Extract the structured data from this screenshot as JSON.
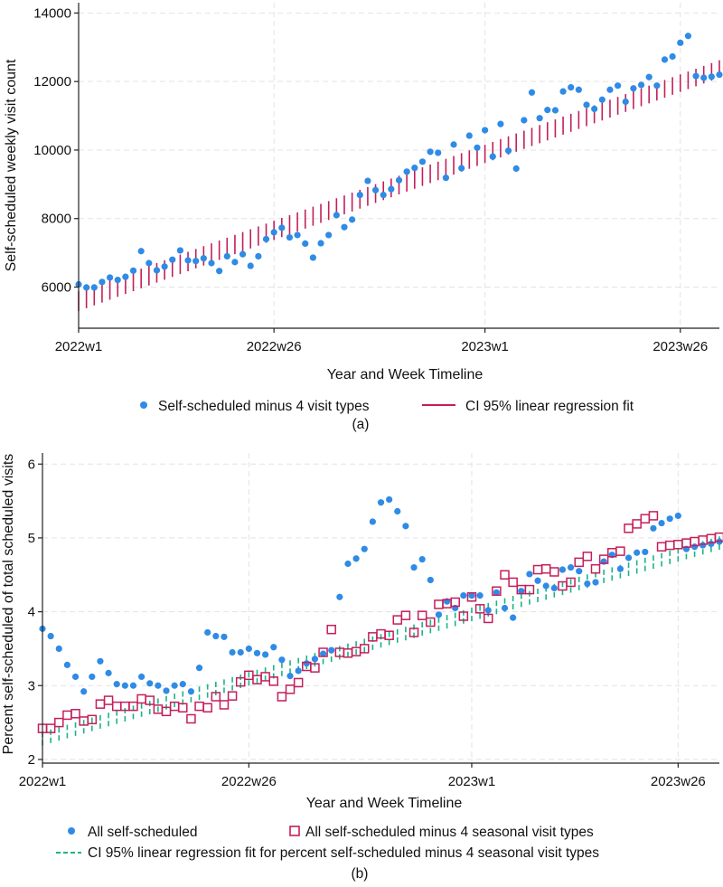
{
  "colors": {
    "dot": "#2f8be6",
    "ci_a": "#c41e5a",
    "square": "#c41e5a",
    "ci_b": "#18b487"
  },
  "charts": [
    {
      "chart_data": {
        "type": "scatter",
        "caption": "(a)",
        "xlabel": "Year and Week Timeline",
        "ylabel": "Self-scheduled weekly visit count",
        "xlim": [
          1,
          83
        ],
        "ylim": [
          4800,
          14300
        ],
        "x_ticks": [
          {
            "value": 1,
            "label": "2022w1"
          },
          {
            "value": 26,
            "label": "2022w26"
          },
          {
            "value": 53,
            "label": "2023w1"
          },
          {
            "value": 78,
            "label": "2023w26"
          }
        ],
        "y_ticks": [
          {
            "value": 6000,
            "label": "6000"
          },
          {
            "value": 8000,
            "label": "8000"
          },
          {
            "value": 10000,
            "label": "10000"
          },
          {
            "value": 12000,
            "label": "12000"
          },
          {
            "value": 14000,
            "label": "14000"
          }
        ],
        "series": [
          {
            "name": "Self-scheduled minus 4 visit types",
            "kind": "dots",
            "x": [
              1,
              2,
              3,
              4,
              5,
              6,
              7,
              8,
              9,
              10,
              11,
              12,
              13,
              14,
              15,
              16,
              17,
              18,
              19,
              20,
              21,
              22,
              23,
              24,
              25,
              26,
              27,
              28,
              29,
              30,
              31,
              32,
              33,
              34,
              35,
              36,
              37,
              38,
              39,
              40,
              41,
              42,
              43,
              44,
              45,
              46,
              47,
              48,
              49,
              50,
              51,
              52,
              53,
              54,
              55,
              56,
              57,
              58,
              59,
              60,
              61,
              62,
              63,
              64,
              65,
              66,
              67,
              68,
              69,
              70,
              71,
              72,
              73,
              74,
              75,
              76,
              77,
              78,
              79,
              80,
              81,
              82,
              83
            ],
            "values": [
              6080,
              5990,
              5990,
              6150,
              6280,
              6210,
              6300,
              6480,
              7050,
              6700,
              6490,
              6600,
              6800,
              7070,
              6780,
              6760,
              6840,
              6700,
              6470,
              6900,
              6730,
              6960,
              6620,
              6900,
              7400,
              7600,
              7730,
              7450,
              7520,
              7270,
              6860,
              7280,
              7520,
              8100,
              7750,
              7970,
              8690,
              9100,
              8830,
              8690,
              8860,
              9120,
              9370,
              9480,
              9660,
              9950,
              9920,
              9190,
              10160,
              9470,
              10420,
              10070,
              10580,
              9810,
              10760,
              9980,
              9460,
              10870,
              11680,
              10930,
              11170,
              11160,
              11710,
              11830,
              11760,
              11320,
              11200,
              11470,
              11760,
              11880,
              11410,
              11800,
              11900,
              12130,
              11880,
              12640,
              12730,
              13130,
              13330,
              12160,
              12110,
              12140,
              12200
            ]
          },
          {
            "name": "CI 95% linear regression fit",
            "kind": "ci",
            "ci_start": [
              5300,
              5880
            ],
            "ci_end": [
              12110,
              12620
            ]
          }
        ],
        "legend": [
          {
            "label": "Self-scheduled minus 4 visit types",
            "marker": "dot"
          },
          {
            "label": "CI 95% linear regression fit",
            "marker": "line"
          }
        ]
      }
    },
    {
      "chart_data": {
        "type": "scatter",
        "caption": "(b)",
        "xlabel": "Year and Week Timeline",
        "ylabel": "Percent self-scheduled of total scheduled visits",
        "xlim": [
          1,
          83
        ],
        "ylim": [
          1.95,
          6.15
        ],
        "x_ticks": [
          {
            "value": 1,
            "label": "2022w1"
          },
          {
            "value": 26,
            "label": "2022w26"
          },
          {
            "value": 53,
            "label": "2023w1"
          },
          {
            "value": 78,
            "label": "2023w26"
          }
        ],
        "y_ticks": [
          {
            "value": 2,
            "label": "2"
          },
          {
            "value": 3,
            "label": "3"
          },
          {
            "value": 4,
            "label": "4"
          },
          {
            "value": 5,
            "label": "5"
          },
          {
            "value": 6,
            "label": "6"
          }
        ],
        "series": [
          {
            "name": "All self-scheduled",
            "kind": "dots",
            "x": [
              1,
              2,
              3,
              4,
              5,
              6,
              7,
              8,
              9,
              10,
              11,
              12,
              13,
              14,
              15,
              16,
              17,
              18,
              19,
              20,
              21,
              22,
              23,
              24,
              25,
              26,
              27,
              28,
              29,
              30,
              31,
              32,
              33,
              34,
              35,
              36,
              37,
              38,
              39,
              40,
              41,
              42,
              43,
              44,
              45,
              46,
              47,
              48,
              49,
              50,
              51,
              52,
              53,
              54,
              55,
              56,
              57,
              58,
              59,
              60,
              61,
              62,
              63,
              64,
              65,
              66,
              67,
              68,
              69,
              70,
              71,
              72,
              73,
              74,
              75,
              76,
              77,
              78,
              79,
              80,
              81,
              82,
              83
            ],
            "values": [
              3.77,
              3.67,
              3.5,
              3.28,
              3.12,
              2.92,
              3.12,
              3.33,
              3.17,
              3.02,
              3.0,
              3.0,
              3.12,
              3.03,
              3.0,
              2.93,
              3.0,
              3.02,
              2.92,
              3.24,
              3.72,
              3.67,
              3.66,
              3.45,
              3.45,
              3.5,
              3.44,
              3.42,
              3.52,
              3.35,
              3.13,
              3.2,
              3.3,
              3.36,
              3.43,
              3.48,
              4.2,
              4.65,
              4.72,
              4.85,
              5.22,
              5.48,
              5.52,
              5.36,
              5.16,
              4.6,
              4.71,
              4.43,
              3.96,
              4.14,
              4.05,
              4.22,
              4.22,
              4.22,
              4.02,
              4.26,
              4.05,
              3.92,
              4.28,
              4.51,
              4.42,
              4.35,
              4.32,
              4.57,
              4.6,
              4.55,
              4.38,
              4.4,
              4.68,
              4.77,
              4.58,
              4.73,
              4.8,
              4.81,
              5.13,
              5.2,
              5.26,
              5.3,
              4.85,
              4.88,
              4.9,
              4.92,
              4.95
            ]
          },
          {
            "name": "All self-scheduled minus 4 seasonal visit types",
            "kind": "squares",
            "x": [
              1,
              2,
              3,
              4,
              5,
              6,
              7,
              8,
              9,
              10,
              11,
              12,
              13,
              14,
              15,
              16,
              17,
              18,
              19,
              20,
              21,
              22,
              23,
              24,
              25,
              26,
              27,
              28,
              29,
              30,
              31,
              32,
              33,
              34,
              35,
              36,
              37,
              38,
              39,
              40,
              41,
              42,
              43,
              44,
              45,
              46,
              47,
              48,
              49,
              50,
              51,
              52,
              53,
              54,
              55,
              56,
              57,
              58,
              59,
              60,
              61,
              62,
              63,
              64,
              65,
              66,
              67,
              68,
              69,
              70,
              71,
              72,
              73,
              74,
              75,
              76,
              77,
              78,
              79,
              80,
              81,
              82,
              83
            ],
            "values": [
              2.42,
              2.42,
              2.5,
              2.6,
              2.62,
              2.52,
              2.54,
              2.75,
              2.8,
              2.72,
              2.72,
              2.72,
              2.82,
              2.8,
              2.68,
              2.65,
              2.72,
              2.7,
              2.55,
              2.72,
              2.7,
              2.85,
              2.74,
              2.86,
              3.05,
              3.14,
              3.08,
              3.12,
              3.06,
              2.85,
              2.95,
              3.04,
              3.26,
              3.24,
              3.45,
              3.76,
              3.45,
              3.44,
              3.46,
              3.5,
              3.66,
              3.7,
              3.68,
              3.89,
              3.95,
              3.72,
              3.95,
              3.86,
              4.1,
              4.11,
              4.13,
              3.94,
              4.2,
              4.04,
              3.91,
              4.28,
              4.5,
              4.4,
              4.3,
              4.3,
              4.57,
              4.58,
              4.54,
              4.35,
              4.4,
              4.67,
              4.75,
              4.58,
              4.71,
              4.8,
              4.82,
              5.13,
              5.19,
              5.26,
              5.3,
              4.88,
              4.9,
              4.91,
              4.93,
              4.95,
              4.97,
              4.99,
              5.01
            ]
          },
          {
            "name": "CI 95% linear regression fit for percent self-scheduled minus 4 seasonal visit types",
            "kind": "ci",
            "ci_start": [
              2.19,
              2.39
            ],
            "ci_end": [
              4.84,
              5.02
            ]
          }
        ],
        "legend": [
          {
            "label": "All self-scheduled",
            "marker": "dot"
          },
          {
            "label": "All self-scheduled minus 4 seasonal visit types",
            "marker": "square"
          },
          {
            "label": "CI 95% linear regression fit for percent self-scheduled minus 4 seasonal visit types",
            "marker": "line"
          }
        ]
      }
    }
  ]
}
